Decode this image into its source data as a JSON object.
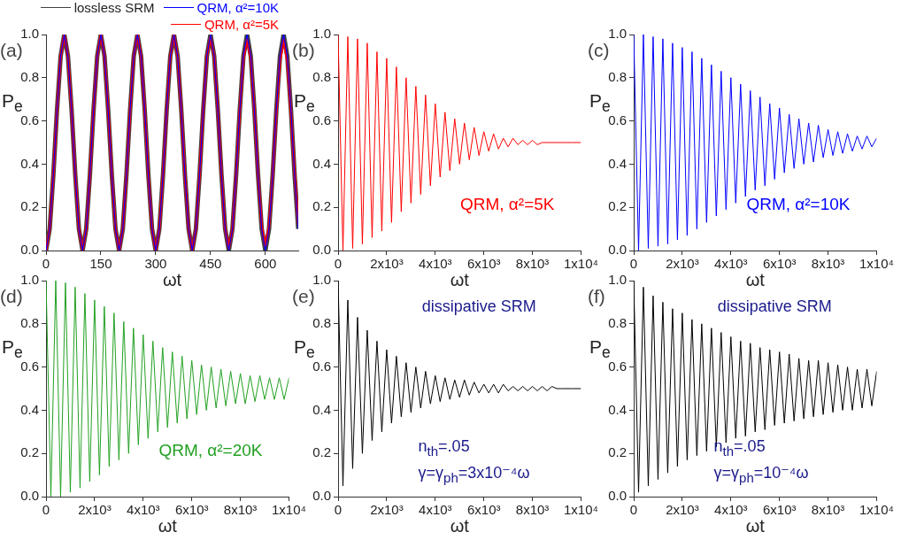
{
  "chart_data": [
    {
      "type": "line",
      "title": "(a)",
      "xlabel": "ωt",
      "ylabel": "P$_{e}$",
      "legend": "top",
      "x": [
        0,
        10,
        20,
        30,
        40,
        50,
        60,
        70,
        80,
        90,
        100,
        110,
        120,
        130,
        140,
        150,
        160,
        170,
        180,
        190,
        200,
        210,
        220,
        230,
        240,
        250,
        260,
        270,
        280,
        290,
        300,
        310,
        320,
        330,
        340,
        350,
        360,
        370,
        380,
        390,
        400,
        410,
        420,
        430,
        440,
        450,
        460,
        470,
        480,
        490,
        500,
        510,
        520,
        530,
        540,
        550,
        560,
        570,
        580,
        590,
        600,
        610,
        620,
        630,
        640,
        650,
        660,
        670,
        680,
        690
      ],
      "xlim": [
        0,
        690
      ],
      "xticks": [
        0,
        150,
        300,
        450,
        600
      ],
      "ylim": [
        0,
        1
      ],
      "yticks": [
        {
          "value": 0,
          "label": "0.0"
        },
        {
          "value": 0.2,
          "label": "0.2"
        },
        {
          "value": 0.4,
          "label": "0.4"
        },
        {
          "value": 0.6,
          "label": "0.6"
        },
        {
          "value": 0.8,
          "label": "0.8"
        },
        {
          "value": 1,
          "label": "1.0"
        }
      ],
      "series": [
        {
          "name": "lossless SRM",
          "color": "#404040",
          "values": [
            0,
            0.1,
            0.35,
            0.65,
            0.9,
            1,
            0.9,
            0.65,
            0.35,
            0.1,
            0,
            0.1,
            0.35,
            0.65,
            0.9,
            1,
            0.9,
            0.65,
            0.35,
            0.1,
            0,
            0.1,
            0.35,
            0.65,
            0.9,
            1,
            0.9,
            0.65,
            0.35,
            0.1,
            0,
            0.1,
            0.35,
            0.65,
            0.9,
            1,
            0.9,
            0.65,
            0.35,
            0.1,
            0,
            0.1,
            0.35,
            0.65,
            0.9,
            1,
            0.9,
            0.65,
            0.35,
            0.1,
            0,
            0.1,
            0.35,
            0.65,
            0.9,
            1,
            0.9,
            0.65,
            0.35,
            0.1,
            0,
            0.1,
            0.35,
            0.65,
            0.9,
            1,
            0.9,
            0.65,
            0.35,
            0.1
          ]
        },
        {
          "name": "QRM, α²=10K",
          "color": "#0000ff",
          "values": [
            0,
            0.1,
            0.35,
            0.65,
            0.9,
            1,
            0.9,
            0.65,
            0.35,
            0.1,
            0,
            0.1,
            0.35,
            0.65,
            0.9,
            1,
            0.9,
            0.65,
            0.35,
            0.1,
            0,
            0.1,
            0.35,
            0.65,
            0.9,
            1,
            0.9,
            0.65,
            0.35,
            0.1,
            0,
            0.1,
            0.35,
            0.65,
            0.9,
            1,
            0.9,
            0.65,
            0.35,
            0.1,
            0,
            0.1,
            0.35,
            0.65,
            0.9,
            1,
            0.9,
            0.65,
            0.35,
            0.1,
            0,
            0.1,
            0.35,
            0.65,
            0.9,
            1,
            0.9,
            0.65,
            0.35,
            0.1,
            0,
            0.1,
            0.35,
            0.65,
            0.9,
            1,
            0.9,
            0.65,
            0.35,
            0.1
          ]
        },
        {
          "name": "QRM, α²=5K",
          "color": "#ff0000",
          "values": [
            0,
            0.1,
            0.35,
            0.65,
            0.9,
            1,
            0.9,
            0.65,
            0.35,
            0.1,
            0,
            0.1,
            0.35,
            0.65,
            0.9,
            1,
            0.9,
            0.65,
            0.35,
            0.1,
            0,
            0.1,
            0.35,
            0.65,
            0.9,
            1,
            0.9,
            0.65,
            0.35,
            0.1,
            0,
            0.1,
            0.35,
            0.65,
            0.9,
            1,
            0.9,
            0.65,
            0.35,
            0.1,
            0,
            0.1,
            0.35,
            0.65,
            0.9,
            0.99,
            0.9,
            0.65,
            0.35,
            0.1,
            0.01,
            0.1,
            0.35,
            0.65,
            0.89,
            0.98,
            0.89,
            0.65,
            0.35,
            0.11,
            0.02,
            0.11,
            0.35,
            0.64,
            0.88,
            0.98,
            0.88,
            0.64,
            0.36,
            0.12
          ]
        }
      ]
    },
    {
      "type": "line",
      "title": "(b)",
      "xlabel": "ωt",
      "ylabel": "P$_{e}$",
      "x": [
        0,
        200,
        400,
        600,
        800,
        1000,
        1200,
        1400,
        1600,
        1800,
        2000,
        2200,
        2400,
        2600,
        2800,
        3000,
        3200,
        3400,
        3600,
        3800,
        4000,
        4200,
        4400,
        4600,
        4800,
        5000,
        5200,
        5400,
        5600,
        5800,
        6000,
        6200,
        6400,
        6600,
        6800,
        7000,
        7200,
        7400,
        7600,
        7800,
        8000,
        8200,
        8400,
        8600,
        8800,
        9000,
        9200,
        9400,
        9600,
        9800,
        10000
      ],
      "xlim": [
        0,
        10000
      ],
      "xticks": [
        0,
        {
          "value": 2000,
          "label": "2x10³"
        },
        {
          "value": 4000,
          "label": "4x10³"
        },
        {
          "value": 6000,
          "label": "6x10³"
        },
        {
          "value": 8000,
          "label": "8x10³"
        },
        {
          "value": 10000,
          "label": "1x10⁴"
        }
      ],
      "ylim": [
        0,
        1
      ],
      "yticks": [
        {
          "value": 0,
          "label": "0.0"
        },
        {
          "value": 0.2,
          "label": "0.2"
        },
        {
          "value": 0.4,
          "label": "0.4"
        },
        {
          "value": 0.6,
          "label": "0.6"
        },
        {
          "value": 0.8,
          "label": "0.8"
        },
        {
          "value": 1,
          "label": "1.0"
        }
      ],
      "series": [
        {
          "name": "QRM, α²=5K",
          "color": "#ff0000",
          "values": [
            1.0,
            0.0,
            0.99,
            0.01,
            0.98,
            0.03,
            0.96,
            0.06,
            0.92,
            0.09,
            0.89,
            0.13,
            0.85,
            0.18,
            0.8,
            0.22,
            0.76,
            0.26,
            0.72,
            0.3,
            0.68,
            0.34,
            0.64,
            0.37,
            0.61,
            0.4,
            0.59,
            0.42,
            0.57,
            0.44,
            0.55,
            0.46,
            0.54,
            0.47,
            0.52,
            0.48,
            0.52,
            0.49,
            0.51,
            0.49,
            0.51,
            0.49,
            0.5,
            0.5,
            0.5,
            0.5,
            0.5,
            0.5,
            0.5,
            0.5,
            0.5
          ]
        }
      ]
    },
    {
      "type": "line",
      "title": "(c)",
      "xlabel": "ωt",
      "ylabel": "P$_{e}$",
      "x": [
        0,
        200,
        400,
        600,
        800,
        1000,
        1200,
        1400,
        1600,
        1800,
        2000,
        2200,
        2400,
        2600,
        2800,
        3000,
        3200,
        3400,
        3600,
        3800,
        4000,
        4200,
        4400,
        4600,
        4800,
        5000,
        5200,
        5400,
        5600,
        5800,
        6000,
        6200,
        6400,
        6600,
        6800,
        7000,
        7200,
        7400,
        7600,
        7800,
        8000,
        8200,
        8400,
        8600,
        8800,
        9000,
        9200,
        9400,
        9600,
        9800,
        10000
      ],
      "xlim": [
        0,
        10000
      ],
      "xticks": [
        0,
        {
          "value": 2000,
          "label": "2x10³"
        },
        {
          "value": 4000,
          "label": "4x10³"
        },
        {
          "value": 6000,
          "label": "6x10³"
        },
        {
          "value": 8000,
          "label": "8x10³"
        },
        {
          "value": 10000,
          "label": "1x10⁴"
        }
      ],
      "ylim": [
        0,
        1
      ],
      "yticks": [
        {
          "value": 0,
          "label": "0.0"
        },
        {
          "value": 0.2,
          "label": "0.2"
        },
        {
          "value": 0.4,
          "label": "0.4"
        },
        {
          "value": 0.6,
          "label": "0.6"
        },
        {
          "value": 0.8,
          "label": "0.8"
        },
        {
          "value": 1,
          "label": "1.0"
        }
      ],
      "series": [
        {
          "name": "QRM, α²=10K",
          "color": "#0000ff",
          "values": [
            1.0,
            0.0,
            1.0,
            0.01,
            0.99,
            0.02,
            0.98,
            0.03,
            0.96,
            0.05,
            0.94,
            0.07,
            0.92,
            0.1,
            0.89,
            0.13,
            0.86,
            0.16,
            0.83,
            0.19,
            0.8,
            0.22,
            0.77,
            0.25,
            0.74,
            0.28,
            0.71,
            0.3,
            0.68,
            0.33,
            0.66,
            0.36,
            0.63,
            0.38,
            0.61,
            0.4,
            0.59,
            0.41,
            0.58,
            0.43,
            0.56,
            0.44,
            0.55,
            0.45,
            0.54,
            0.46,
            0.53,
            0.47,
            0.53,
            0.48,
            0.52
          ]
        }
      ]
    },
    {
      "type": "line",
      "title": "(d)",
      "xlabel": "ωt",
      "ylabel": "P$_{e}$",
      "x": [
        0,
        200,
        400,
        600,
        800,
        1000,
        1200,
        1400,
        1600,
        1800,
        2000,
        2200,
        2400,
        2600,
        2800,
        3000,
        3200,
        3400,
        3600,
        3800,
        4000,
        4200,
        4400,
        4600,
        4800,
        5000,
        5200,
        5400,
        5600,
        5800,
        6000,
        6200,
        6400,
        6600,
        6800,
        7000,
        7200,
        7400,
        7600,
        7800,
        8000,
        8200,
        8400,
        8600,
        8800,
        9000,
        9200,
        9400,
        9600,
        9800,
        10000
      ],
      "xlim": [
        0,
        10000
      ],
      "xticks": [
        0,
        {
          "value": 2000,
          "label": "2x10³"
        },
        {
          "value": 4000,
          "label": "4x10³"
        },
        {
          "value": 6000,
          "label": "6x10³"
        },
        {
          "value": 8000,
          "label": "8x10³"
        },
        {
          "value": 10000,
          "label": "1x10⁴"
        }
      ],
      "ylim": [
        0,
        1
      ],
      "yticks": [
        {
          "value": 0,
          "label": "0.0"
        },
        {
          "value": 0.2,
          "label": "0.2"
        },
        {
          "value": 0.4,
          "label": "0.4"
        },
        {
          "value": 0.6,
          "label": "0.6"
        },
        {
          "value": 0.8,
          "label": "0.8"
        },
        {
          "value": 1,
          "label": "1.0"
        }
      ],
      "series": [
        {
          "name": "QRM, α²=20K",
          "color": "#22a022",
          "values": [
            1.0,
            0.0,
            1.0,
            0.0,
            0.99,
            0.02,
            0.97,
            0.04,
            0.94,
            0.07,
            0.91,
            0.1,
            0.88,
            0.14,
            0.85,
            0.17,
            0.81,
            0.2,
            0.78,
            0.24,
            0.75,
            0.27,
            0.72,
            0.3,
            0.69,
            0.32,
            0.67,
            0.34,
            0.65,
            0.36,
            0.63,
            0.38,
            0.61,
            0.4,
            0.6,
            0.41,
            0.59,
            0.42,
            0.58,
            0.43,
            0.57,
            0.43,
            0.56,
            0.44,
            0.56,
            0.45,
            0.55,
            0.45,
            0.55,
            0.45,
            0.55
          ]
        }
      ]
    },
    {
      "type": "line",
      "title": "(e)",
      "xlabel": "ωt",
      "ylabel": "P$_{e}$",
      "annotations": [
        "dissipative SRM",
        "n$_{th}$=.05",
        "γ=γ$_{ph}$=3x10⁻⁴ω"
      ],
      "x": [
        0,
        200,
        400,
        600,
        800,
        1000,
        1200,
        1400,
        1600,
        1800,
        2000,
        2200,
        2400,
        2600,
        2800,
        3000,
        3200,
        3400,
        3600,
        3800,
        4000,
        4200,
        4400,
        4600,
        4800,
        5000,
        5200,
        5400,
        5600,
        5800,
        6000,
        6200,
        6400,
        6600,
        6800,
        7000,
        7200,
        7400,
        7600,
        7800,
        8000,
        8200,
        8400,
        8600,
        8800,
        9000,
        9200,
        9400,
        9600,
        9800,
        10000
      ],
      "xlim": [
        0,
        10000
      ],
      "xticks": [
        0,
        {
          "value": 2000,
          "label": "2x10³"
        },
        {
          "value": 4000,
          "label": "4x10³"
        },
        {
          "value": 6000,
          "label": "6x10³"
        },
        {
          "value": 8000,
          "label": "8x10³"
        },
        {
          "value": 10000,
          "label": "1x10⁴"
        }
      ],
      "ylim": [
        0,
        1
      ],
      "yticks": [
        {
          "value": 0,
          "label": "0.0"
        },
        {
          "value": 0.2,
          "label": "0.2"
        },
        {
          "value": 0.4,
          "label": "0.4"
        },
        {
          "value": 0.6,
          "label": "0.6"
        },
        {
          "value": 0.8,
          "label": "0.8"
        },
        {
          "value": 1,
          "label": "1.0"
        }
      ],
      "series": [
        {
          "color": "#000000",
          "values": [
            1.0,
            0.05,
            0.91,
            0.13,
            0.83,
            0.2,
            0.77,
            0.26,
            0.72,
            0.3,
            0.68,
            0.34,
            0.65,
            0.37,
            0.62,
            0.39,
            0.6,
            0.41,
            0.58,
            0.43,
            0.56,
            0.44,
            0.55,
            0.45,
            0.54,
            0.46,
            0.54,
            0.47,
            0.53,
            0.48,
            0.52,
            0.48,
            0.52,
            0.48,
            0.52,
            0.49,
            0.51,
            0.49,
            0.51,
            0.49,
            0.51,
            0.49,
            0.51,
            0.49,
            0.51,
            0.5,
            0.5,
            0.5,
            0.5,
            0.5,
            0.5
          ]
        }
      ]
    },
    {
      "type": "line",
      "title": "(f)",
      "xlabel": "ωt",
      "ylabel": "P$_{e}$",
      "annotations": [
        "dissipative SRM",
        "n$_{th}$=.05",
        "γ=γ$_{ph}$=10⁻⁴ω"
      ],
      "x": [
        0,
        200,
        400,
        600,
        800,
        1000,
        1200,
        1400,
        1600,
        1800,
        2000,
        2200,
        2400,
        2600,
        2800,
        3000,
        3200,
        3400,
        3600,
        3800,
        4000,
        4200,
        4400,
        4600,
        4800,
        5000,
        5200,
        5400,
        5600,
        5800,
        6000,
        6200,
        6400,
        6600,
        6800,
        7000,
        7200,
        7400,
        7600,
        7800,
        8000,
        8200,
        8400,
        8600,
        8800,
        9000,
        9200,
        9400,
        9600,
        9800,
        10000
      ],
      "xlim": [
        0,
        10000
      ],
      "xticks": [
        0,
        {
          "value": 2000,
          "label": "2x10³"
        },
        {
          "value": 4000,
          "label": "4x10³"
        },
        {
          "value": 6000,
          "label": "6x10³"
        },
        {
          "value": 8000,
          "label": "8x10³"
        },
        {
          "value": 10000,
          "label": "1x10⁴"
        }
      ],
      "ylim": [
        0,
        1
      ],
      "yticks": [
        {
          "value": 0,
          "label": "0.0"
        },
        {
          "value": 0.2,
          "label": "0.2"
        },
        {
          "value": 0.4,
          "label": "0.4"
        },
        {
          "value": 0.6,
          "label": "0.6"
        },
        {
          "value": 0.8,
          "label": "0.8"
        },
        {
          "value": 1,
          "label": "1.0"
        }
      ],
      "series": [
        {
          "color": "#000000",
          "values": [
            1.0,
            0.02,
            0.97,
            0.05,
            0.93,
            0.08,
            0.9,
            0.11,
            0.87,
            0.14,
            0.85,
            0.17,
            0.82,
            0.19,
            0.8,
            0.21,
            0.78,
            0.23,
            0.76,
            0.25,
            0.74,
            0.27,
            0.72,
            0.28,
            0.71,
            0.3,
            0.69,
            0.31,
            0.68,
            0.33,
            0.67,
            0.34,
            0.66,
            0.35,
            0.64,
            0.36,
            0.63,
            0.37,
            0.63,
            0.38,
            0.62,
            0.39,
            0.61,
            0.4,
            0.6,
            0.4,
            0.59,
            0.41,
            0.59,
            0.42,
            0.58
          ]
        }
      ]
    }
  ]
}
